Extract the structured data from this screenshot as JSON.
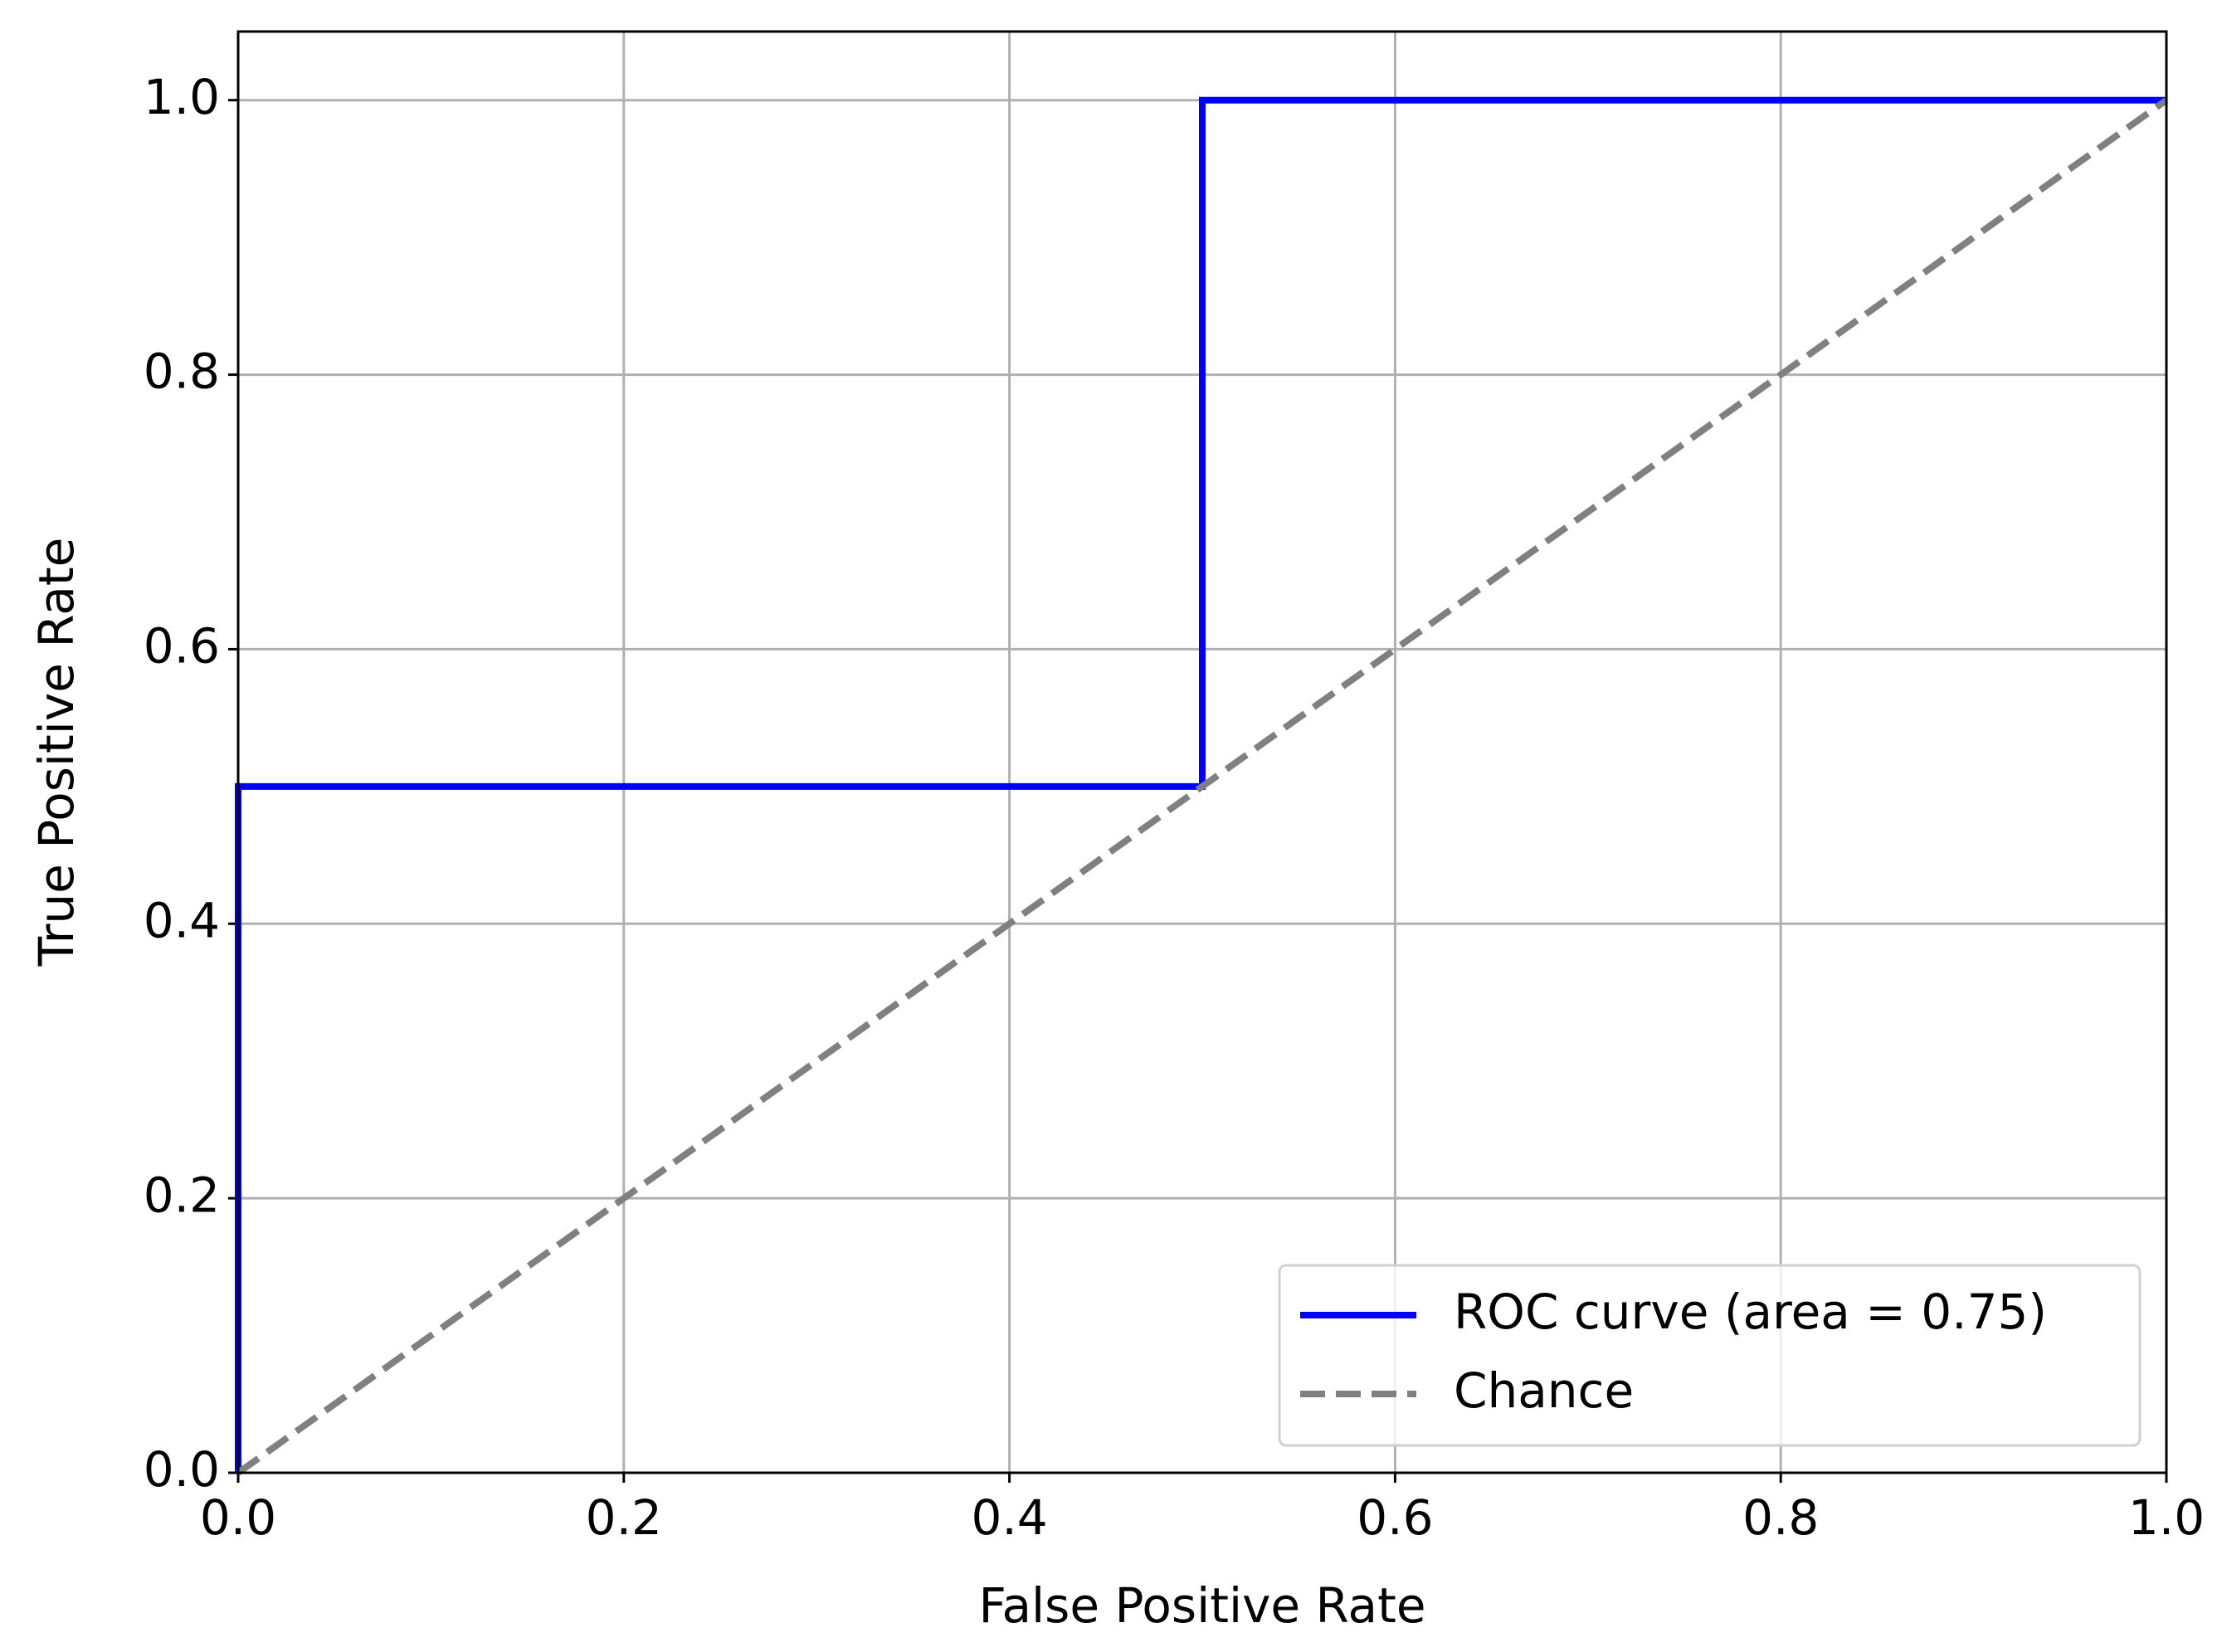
{
  "chart_data": {
    "type": "line",
    "xlabel": "False Positive Rate",
    "ylabel": "True Positive Rate",
    "xlim": [
      0,
      1
    ],
    "ylim": [
      0,
      1.05
    ],
    "xticks": [
      {
        "value": 0,
        "label": "0.0"
      },
      0.2,
      0.4,
      0.6,
      0.8,
      {
        "value": 1,
        "label": "1.0"
      }
    ],
    "yticks": [
      {
        "value": 0,
        "label": "0.0"
      },
      0.2,
      0.4,
      0.6,
      0.8,
      {
        "value": 1,
        "label": "1.0"
      }
    ],
    "grid": true,
    "legend": "lower right",
    "series": [
      {
        "name": "ROC curve (area = 0.75)",
        "color": "#0000ff",
        "dash": "solid",
        "x": [
          0,
          0,
          0.5,
          0.5,
          1
        ],
        "values": [
          0,
          0.5,
          0.5,
          1,
          1
        ]
      },
      {
        "name": "Chance",
        "color": "#808080",
        "dash": "dashed",
        "x": [
          0,
          1
        ],
        "values": [
          0,
          1
        ]
      }
    ]
  }
}
